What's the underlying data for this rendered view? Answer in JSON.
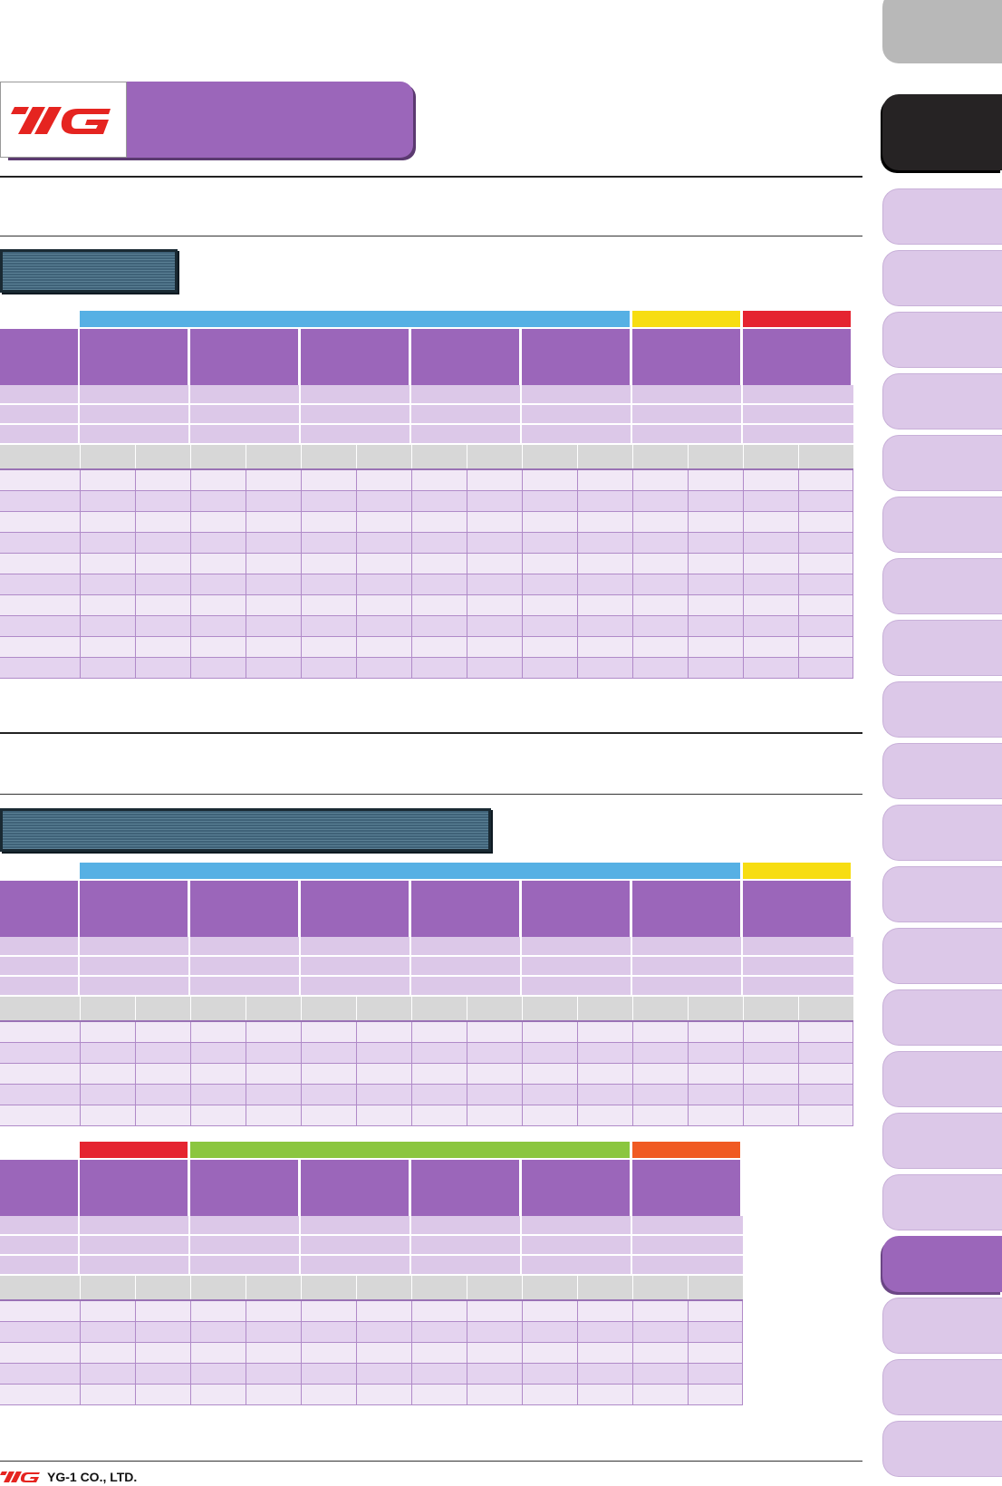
{
  "brand": {
    "logo_text": "YG",
    "company_name": "YG-1 CO., LTD.",
    "accent_color": "#e52420",
    "purple": "#9b66ba",
    "light_purple": "#dcc8e8"
  },
  "category_colors": {
    "blue": "#56b0e4",
    "yellow": "#f7dd12",
    "red": "#e52430",
    "green": "#8bc63f",
    "orange": "#f05a22"
  },
  "tables": [
    {
      "id": "table-1",
      "strips": [
        "blue",
        "yellow",
        "red"
      ],
      "material_columns": 7,
      "data_rows": 10
    },
    {
      "id": "table-2",
      "strips": [
        "blue",
        "yellow"
      ],
      "material_columns": 7,
      "data_rows": 5
    },
    {
      "id": "table-3",
      "strips": [
        "red",
        "green",
        "orange"
      ],
      "material_columns": 6,
      "data_rows": 5
    }
  ],
  "side_tabs": {
    "count": 23,
    "active_index": 19
  }
}
